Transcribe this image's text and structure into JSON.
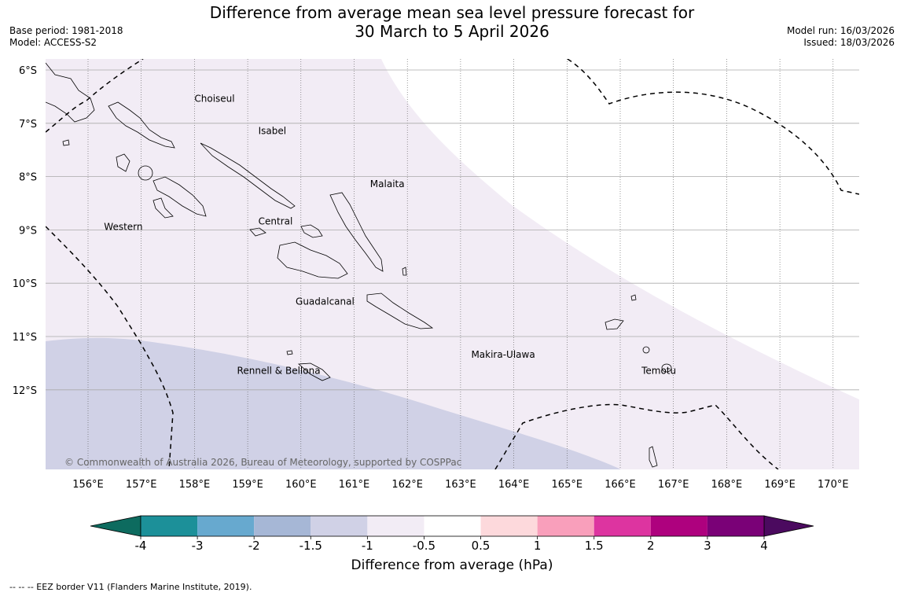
{
  "header": {
    "title_line1": "Difference from average mean sea level pressure forecast for",
    "title_line2": "30 March to 5 April 2026",
    "base_period": "Base period: 1981-2018",
    "model": "Model: ACCESS-S2",
    "model_run": "Model run: 16/03/2026",
    "issued": "Issued: 18/03/2026"
  },
  "map": {
    "extent": {
      "lon": [
        155.2,
        170.5
      ],
      "lat": [
        -13.5,
        -5.8
      ]
    },
    "lon_ticks": [
      "156°E",
      "157°E",
      "158°E",
      "159°E",
      "160°E",
      "161°E",
      "162°E",
      "163°E",
      "164°E",
      "165°E",
      "166°E",
      "167°E",
      "168°E",
      "169°E",
      "170°E"
    ],
    "lat_ticks": [
      "6°S",
      "7°S",
      "8°S",
      "9°S",
      "10°S",
      "11°S",
      "12°S"
    ],
    "place_labels": [
      {
        "name": "Choiseul",
        "lon": 158.0,
        "lat": -6.6
      },
      {
        "name": "Isabel",
        "lon": 159.2,
        "lat": -7.2
      },
      {
        "name": "Malaita",
        "lon": 161.3,
        "lat": -8.2
      },
      {
        "name": "Western",
        "lon": 156.3,
        "lat": -9.0
      },
      {
        "name": "Central",
        "lon": 159.2,
        "lat": -8.9
      },
      {
        "name": "Guadalcanal",
        "lon": 159.9,
        "lat": -10.4
      },
      {
        "name": "Makira-Ulawa",
        "lon": 163.2,
        "lat": -11.4
      },
      {
        "name": "Temotu",
        "lon": 166.4,
        "lat": -11.7
      },
      {
        "name": "Rennell & Bellona",
        "lon": 158.8,
        "lat": -11.7
      }
    ],
    "copyright": "© Commonwealth of Australia 2026, Bureau of Meteorology, supported by COSPPac",
    "colors": {
      "neg_1_to_neg_05": "#f2ecf5",
      "neg_15_to_neg_1": "#d0d1e6",
      "coast": "#000000"
    }
  },
  "colorbar": {
    "title": "Difference from average (hPa)",
    "ticks": [
      "-4",
      "-3",
      "-2",
      "-1.5",
      "-1",
      "-0.5",
      "0.5",
      "1",
      "1.5",
      "2",
      "3",
      "4"
    ],
    "under_color": "#0d6b5f",
    "over_color": "#4b0a5f",
    "colors": [
      "#1c9099",
      "#67a9cf",
      "#a6b7d6",
      "#d0d1e6",
      "#f2ecf5",
      "#ffffff",
      "#fdd9dc",
      "#f99fbb",
      "#dd34a0",
      "#ae017e",
      "#7a0177"
    ]
  },
  "footnote": "--  --  -- EEZ border V11 (Flanders Marine Institute, 2019)."
}
